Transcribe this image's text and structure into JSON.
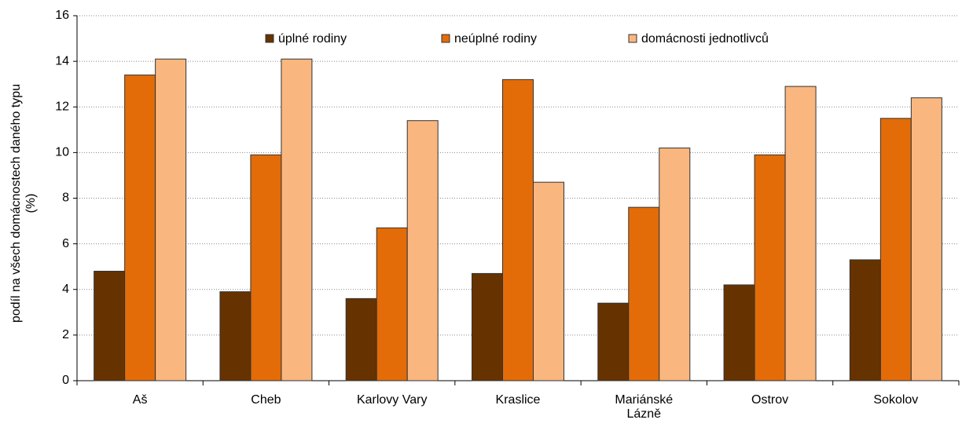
{
  "chart_data": {
    "type": "bar",
    "y_label": "podíl na všech domácnostech daného typu (%)",
    "categories": [
      "Aš",
      "Cheb",
      "Karlovy Vary",
      "Kraslice",
      "Mariánské Lázně",
      "Ostrov",
      "Sokolov"
    ],
    "series": [
      {
        "name": "úplné rodiny",
        "color": "#663300",
        "values": [
          4.8,
          3.9,
          3.6,
          4.7,
          3.4,
          4.2,
          5.3
        ]
      },
      {
        "name": "neúplné rodiny",
        "color": "#e36c09",
        "values": [
          13.4,
          9.9,
          6.7,
          13.2,
          7.6,
          9.9,
          11.5
        ]
      },
      {
        "name": "domácnosti jednotlivců",
        "color": "#f9b77f",
        "values": [
          14.1,
          14.1,
          11.4,
          8.7,
          10.2,
          12.9,
          12.4
        ]
      }
    ],
    "ylim": [
      0,
      16
    ],
    "yticks": [
      0,
      2,
      4,
      6,
      8,
      10,
      12,
      14,
      16
    ],
    "grid": true,
    "legend": "top"
  }
}
